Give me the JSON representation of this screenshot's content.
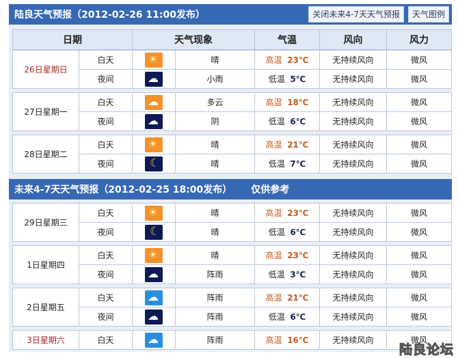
{
  "header": {
    "title": "陆良天气预报（2012-02-26  11:00发布）",
    "close_button": "关闭未来4-7天天气预报",
    "legend_button": "天气图例"
  },
  "columns": [
    "日期",
    "天气现象",
    "气温",
    "风向",
    "风力"
  ],
  "section2": {
    "title": "未来4-7天天气预报（2012-02-25 18:00发布）",
    "note": "仅供参考"
  },
  "days1": [
    {
      "date": "26日星期日",
      "weekend": true,
      "rows": [
        {
          "period": "白天",
          "icon": "sunny-icon",
          "weather": "晴",
          "temp_label": "高温",
          "temp": "23℃",
          "wind_dir": "无持续风向",
          "wind_force": "微风"
        },
        {
          "period": "夜间",
          "icon": "night-light-rain-icon",
          "weather": "小雨",
          "temp_label": "低温",
          "temp": "5℃",
          "wind_dir": "无持续风向",
          "wind_force": "微风"
        }
      ]
    },
    {
      "date": "27日星期一",
      "weekend": false,
      "rows": [
        {
          "period": "白天",
          "icon": "partly-cloudy-icon",
          "weather": "多云",
          "temp_label": "高温",
          "temp": "18℃",
          "wind_dir": "无持续风向",
          "wind_force": "微风"
        },
        {
          "period": "夜间",
          "icon": "night-overcast-icon",
          "weather": "阴",
          "temp_label": "低温",
          "temp": "6℃",
          "wind_dir": "无持续风向",
          "wind_force": "微风"
        }
      ]
    },
    {
      "date": "28日星期二",
      "weekend": false,
      "rows": [
        {
          "period": "白天",
          "icon": "sunny-icon",
          "weather": "晴",
          "temp_label": "高温",
          "temp": "21℃",
          "wind_dir": "无持续风向",
          "wind_force": "微风"
        },
        {
          "period": "夜间",
          "icon": "moon-icon",
          "weather": "晴",
          "temp_label": "低温",
          "temp": "7℃",
          "wind_dir": "无持续风向",
          "wind_force": "微风"
        }
      ]
    }
  ],
  "days2": [
    {
      "date": "29日星期三",
      "weekend": false,
      "rows": [
        {
          "period": "白天",
          "icon": "sunny-icon",
          "weather": "晴",
          "temp_label": "高温",
          "temp": "23℃",
          "wind_dir": "无持续风向",
          "wind_force": "微风"
        },
        {
          "period": "夜间",
          "icon": "moon-icon",
          "weather": "晴",
          "temp_label": "低温",
          "temp": "6℃",
          "wind_dir": "无持续风向",
          "wind_force": "微风"
        }
      ]
    },
    {
      "date": "1日星期四",
      "weekend": false,
      "rows": [
        {
          "period": "白天",
          "icon": "sunny-icon",
          "weather": "晴",
          "temp_label": "高温",
          "temp": "23℃",
          "wind_dir": "无持续风向",
          "wind_force": "微风"
        },
        {
          "period": "夜间",
          "icon": "night-shower-icon",
          "weather": "阵雨",
          "temp_label": "低温",
          "temp": "3℃",
          "wind_dir": "无持续风向",
          "wind_force": "微风"
        }
      ]
    },
    {
      "date": "2日星期五",
      "weekend": false,
      "rows": [
        {
          "period": "白天",
          "icon": "day-shower-icon",
          "weather": "阵雨",
          "temp_label": "高温",
          "temp": "21℃",
          "wind_dir": "无持续风向",
          "wind_force": "微风"
        },
        {
          "period": "夜间",
          "icon": "night-shower-icon",
          "weather": "阵雨",
          "temp_label": "低温",
          "temp": "6℃",
          "wind_dir": "无持续风向",
          "wind_force": "微风"
        }
      ]
    },
    {
      "date": "3日星期六",
      "weekend": true,
      "rows": [
        {
          "period": "白天",
          "icon": "day-shower-icon",
          "weather": "阵雨",
          "temp_label": "高温",
          "temp": "16℃",
          "wind_dir": "无持续风向",
          "wind_force": "微风"
        }
      ]
    }
  ],
  "watermark": "陆良论坛"
}
